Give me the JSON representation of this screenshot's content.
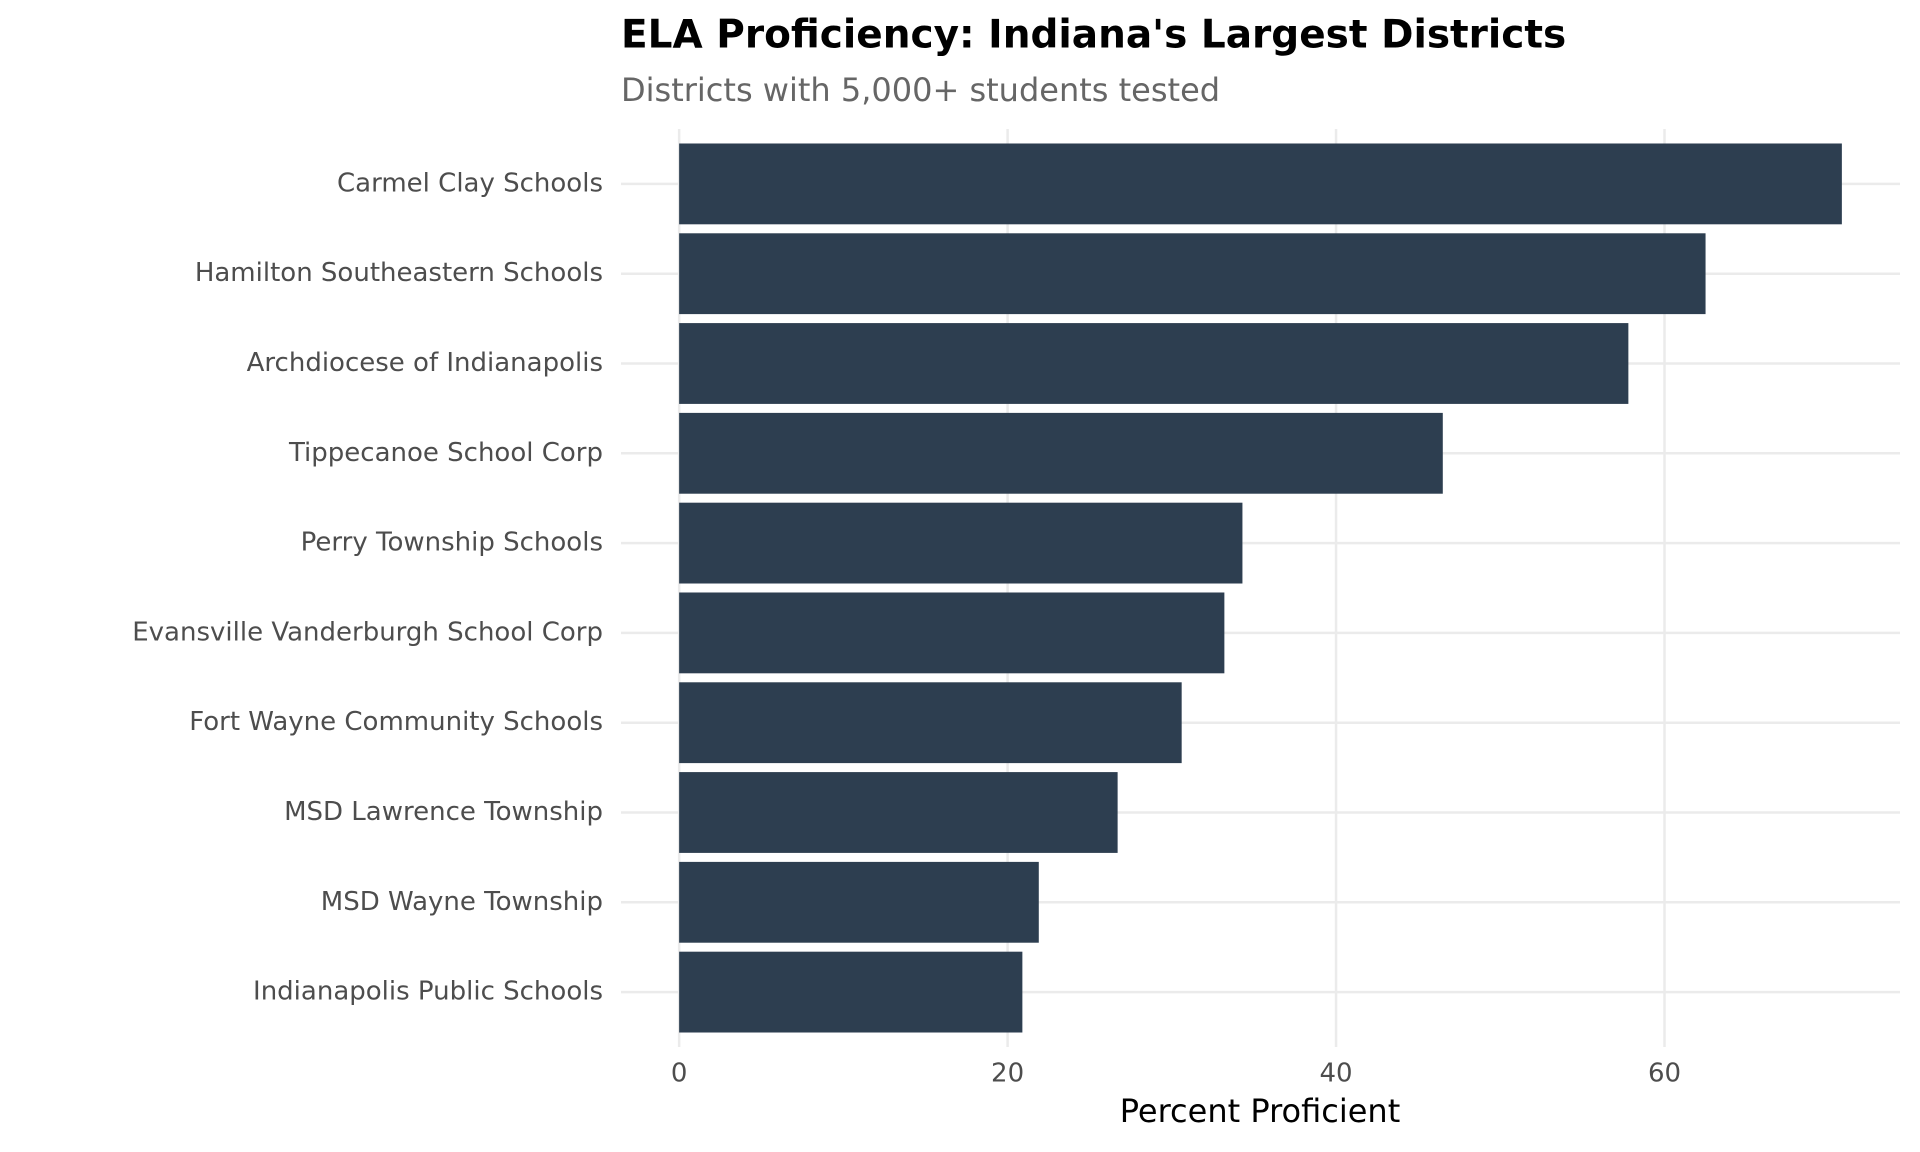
{
  "chart_data": {
    "type": "bar",
    "orientation": "horizontal",
    "title": "ELA Proficiency: Indiana's Largest Districts",
    "subtitle": "Districts with 5,000+ students tested",
    "x_label": "Percent Proficient",
    "categories": [
      "Carmel Clay Schools",
      "Hamilton Southeastern Schools",
      "Archdiocese of Indianapolis",
      "Tippecanoe School Corp",
      "Perry Township Schools",
      "Evansville Vanderburgh School Corp",
      "Fort Wayne Community Schools",
      "MSD Lawrence Township",
      "MSD Wayne Township",
      "Indianapolis Public Schools"
    ],
    "values": [
      70.8,
      62.5,
      57.8,
      46.5,
      34.3,
      33.2,
      30.6,
      26.7,
      21.9,
      20.9
    ],
    "color": "#2d3e50",
    "xlim": [
      -3.54,
      74.34
    ],
    "xticks": [
      0,
      20,
      40,
      60
    ],
    "grid": true
  }
}
